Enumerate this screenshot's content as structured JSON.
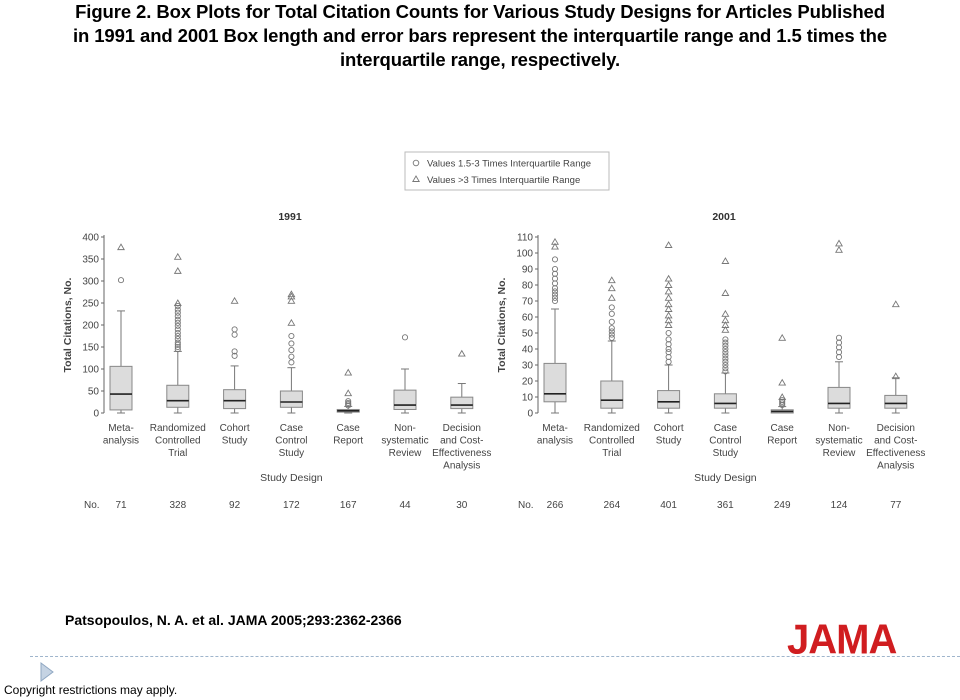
{
  "slide": {
    "title_lines": [
      "Figure 2. Box Plots for Total Citation Counts for Various Study Designs for Articles Published",
      "in 1991 and 2001 Box length and error bars represent the interquartile range and 1.5 times the",
      "interquartile range, respectively."
    ],
    "citation": "Patsopoulos, N. A. et al. JAMA 2005;293:2362-2366",
    "logo": "JAMA",
    "copyright": "Copyright restrictions may apply.",
    "colors": {
      "logo": "#d01d20",
      "box_fill": "#dcdcdc",
      "marker": "#777777",
      "rule": "#9fb5cc"
    }
  },
  "legend": {
    "entries": [
      {
        "symbol": "circle",
        "label": "Values 1.5-3 Times Interquartile Range"
      },
      {
        "symbol": "triangle",
        "label": "Values >3 Times Interquartile Range"
      }
    ]
  },
  "shared": {
    "xlabel": "Study Design",
    "n_label": "No.",
    "categories": [
      [
        "Meta-",
        "analysis"
      ],
      [
        "Randomized",
        "Controlled",
        "Trial"
      ],
      [
        "Cohort",
        "Study"
      ],
      [
        "Case",
        "Control",
        "Study"
      ],
      [
        "Case",
        "Report"
      ],
      [
        "Non-",
        "systematic",
        "Review"
      ],
      [
        "Decision",
        "and Cost-",
        "Effectiveness",
        "Analysis"
      ]
    ]
  },
  "chart_data": [
    {
      "type": "box",
      "title": "1991",
      "xlabel": "Study Design",
      "ylabel": "Total Citations, No.",
      "ylim": [
        0,
        400
      ],
      "yticks": [
        0,
        50,
        100,
        150,
        200,
        250,
        300,
        350,
        400
      ],
      "n": [
        71,
        328,
        92,
        172,
        167,
        44,
        30
      ],
      "boxes": [
        {
          "whisker_low": 0,
          "q1": 7,
          "median": 43,
          "q3": 106,
          "whisker_high": 232,
          "outliers_circle": [
            302
          ],
          "outliers_triangle": [
            377
          ]
        },
        {
          "whisker_low": 0,
          "q1": 13,
          "median": 28,
          "q3": 63,
          "whisker_high": 140,
          "outliers_circle": [
            145,
            150,
            155,
            160,
            168,
            175,
            182,
            190,
            198,
            205,
            212,
            220,
            228,
            235,
            243
          ],
          "outliers_triangle": [
            250,
            323,
            355
          ]
        },
        {
          "whisker_low": 0,
          "q1": 10,
          "median": 28,
          "q3": 53,
          "whisker_high": 107,
          "outliers_circle": [
            130,
            140,
            178,
            190
          ],
          "outliers_triangle": [
            255
          ]
        },
        {
          "whisker_low": 0,
          "q1": 13,
          "median": 25,
          "q3": 50,
          "whisker_high": 103,
          "outliers_circle": [
            115,
            128,
            143,
            158,
            175
          ],
          "outliers_triangle": [
            205,
            255,
            265,
            270
          ]
        },
        {
          "whisker_low": 0,
          "q1": 2,
          "median": 5,
          "q3": 8,
          "whisker_high": 15,
          "outliers_circle": [
            17,
            20,
            23,
            27
          ],
          "outliers_triangle": [
            45,
            92
          ]
        },
        {
          "whisker_low": 0,
          "q1": 8,
          "median": 18,
          "q3": 52,
          "whisker_high": 100,
          "outliers_circle": [
            172
          ],
          "outliers_triangle": []
        },
        {
          "whisker_low": 0,
          "q1": 10,
          "median": 18,
          "q3": 36,
          "whisker_high": 67,
          "outliers_circle": [],
          "outliers_triangle": [
            135
          ]
        }
      ]
    },
    {
      "type": "box",
      "title": "2001",
      "xlabel": "Study Design",
      "ylabel": "Total Citations, No.",
      "ylim": [
        0,
        110
      ],
      "yticks": [
        0,
        10,
        20,
        30,
        40,
        50,
        60,
        70,
        80,
        90,
        100,
        110
      ],
      "n": [
        266,
        264,
        401,
        361,
        249,
        124,
        77
      ],
      "boxes": [
        {
          "whisker_low": 0,
          "q1": 7,
          "median": 12,
          "q3": 31,
          "whisker_high": 65,
          "outliers_circle": [
            70,
            72,
            74,
            76,
            78,
            81,
            84,
            87,
            90,
            96
          ],
          "outliers_triangle": [
            104,
            107
          ]
        },
        {
          "whisker_low": 0,
          "q1": 3,
          "median": 8,
          "q3": 20,
          "whisker_high": 45,
          "outliers_circle": [
            47,
            49,
            51,
            53,
            57,
            62,
            66
          ],
          "outliers_triangle": [
            72,
            78,
            83
          ]
        },
        {
          "whisker_low": 0,
          "q1": 3,
          "median": 7,
          "q3": 14,
          "whisker_high": 30,
          "outliers_circle": [
            32,
            35,
            38,
            40,
            43,
            46,
            50
          ],
          "outliers_triangle": [
            55,
            58,
            61,
            65,
            68,
            72,
            76,
            80,
            84,
            105
          ]
        },
        {
          "whisker_low": 0,
          "q1": 3,
          "median": 6,
          "q3": 12,
          "whisker_high": 25,
          "outliers_circle": [
            26,
            28,
            30,
            32,
            34,
            36,
            38,
            40,
            42,
            44,
            46
          ],
          "outliers_triangle": [
            52,
            55,
            58,
            62,
            75,
            95
          ]
        },
        {
          "whisker_low": 0,
          "q1": 0,
          "median": 1,
          "q3": 2,
          "whisker_high": 4,
          "outliers_circle": [
            5,
            6,
            7,
            8
          ],
          "outliers_triangle": [
            10,
            19,
            47
          ]
        },
        {
          "whisker_low": 0,
          "q1": 3,
          "median": 6,
          "q3": 16,
          "whisker_high": 32,
          "outliers_circle": [
            35,
            38,
            41,
            44,
            47
          ],
          "outliers_triangle": [
            102,
            106
          ]
        },
        {
          "whisker_low": 0,
          "q1": 3,
          "median": 6,
          "q3": 11,
          "whisker_high": 22,
          "outliers_circle": [],
          "outliers_triangle": [
            23,
            68
          ]
        }
      ]
    }
  ]
}
